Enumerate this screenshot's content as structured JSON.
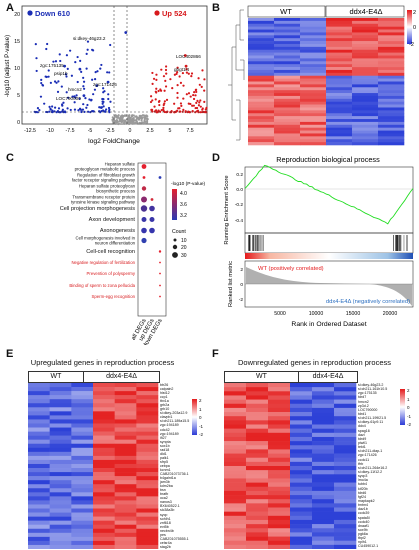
{
  "panels": {
    "A": "A",
    "B": "B",
    "C": "C",
    "D": "D",
    "E": "E",
    "F": "F"
  },
  "volcano": {
    "down_label": "Down 610",
    "up_label": "Up 524",
    "xlabel": "log2 FoldChange",
    "ylabel": "-log10 (adjust P-value)",
    "xticks": [
      "-12.5",
      "-10",
      "-7.5",
      "-5",
      "-2.5",
      "0",
      "2.5",
      "5",
      "7.5"
    ],
    "yticks": [
      "0",
      "5",
      "10",
      "15",
      "20"
    ],
    "genes": {
      "g1": "si:dkey-46g23.2",
      "g2": "zgc:175135",
      "g3": "psip1b",
      "g4": "zgc:171426",
      "g5": "hmcn2",
      "g6": "LOC790000",
      "g7": "LOC402866",
      "g8": "gbgt1l4"
    },
    "colors": {
      "down": "#1a2db5",
      "up": "#d7191c",
      "ns": "#9a9a9a"
    }
  },
  "heatmap_b": {
    "wt_label": "WT",
    "mut_label": "ddx4-E4Δ",
    "legend_ticks": [
      "2",
      "0",
      "-2"
    ]
  },
  "dotplot": {
    "terms": [
      "Heparan sulfate proteoglycan metabolic process",
      "Regulation of fibroblast growth factor receptor signaling pathway",
      "Heparan sulfate proteoglycan biosynthetic process",
      "Transmembrane receptor protein tyrosine kinase signaling pathway",
      "Cell projection morphogenesis",
      "Axon development",
      "Axonogenesis",
      "Cell morphogenesis involved in neuron differentiation",
      "Cell-cell recognition",
      "Negative regulation of fertilization",
      "Prevention of polyspermy",
      "Binding of sperm to zona pellucida",
      "Sperm-egg recognition"
    ],
    "groups": [
      "all DEGs",
      "up DEGs",
      "down DEGs"
    ],
    "legend_title": "-log10 (P-value)",
    "legend_ticks": [
      "4.0",
      "3.6",
      "3.2"
    ],
    "count_title": "Count",
    "count_ticks": [
      "10",
      "20",
      "30"
    ]
  },
  "gsea": {
    "title": "Reproduction biological process",
    "ylabel_top": "Running Enrichment Score",
    "yticks_top": [
      "0.2",
      "0.0",
      "-0.2",
      "-0.4"
    ],
    "ylabel_bottom": "Ranked list metric",
    "yticks_bottom": [
      "2",
      "0",
      "-2"
    ],
    "pos_label": "WT (positively correlated)",
    "neg_label": "ddx4-E4Δ (negatively correlated)",
    "xlabel": "Rank in Ordered Dataset",
    "xticks": [
      "5000",
      "10000",
      "15000",
      "20000"
    ]
  },
  "heat_e": {
    "title": "Upregulated genes in reproduction process",
    "wt_label": "WT",
    "mut_label": "ddx4-E4Δ",
    "legend_ticks": [
      "2",
      "1",
      "0",
      "-1",
      "-2"
    ],
    "genes": [
      "btr26",
      "calpain2",
      "hist12",
      "ccp1",
      "tbx1a",
      "grb2a",
      "grb10",
      "si:dkey-203a12.9",
      "clavpb1",
      "si:ch211-189a15.5",
      "zgc:194189",
      "cdc42",
      "zgc:194189",
      "ifi27",
      "synpta",
      "sox1b",
      "rad18",
      "dld1",
      "palk1",
      "sfrp5",
      "cebpa",
      "kcnm1",
      "CABZ01073736.1",
      "b4galnt1a",
      "jam3b",
      "kdm2ba",
      "bsn",
      "brafb",
      "oca2",
      "nanos3",
      "BX640522.1",
      "slc38a3b",
      "sycp",
      "sohlh1",
      "znf618",
      "evt5b",
      "necbn4b",
      "pes",
      "CABZ01075555.1",
      "celsr4a",
      "stag2b"
    ]
  },
  "heat_f": {
    "title": "Downregulated genes in reproduction process",
    "wt_label": "WT",
    "mut_label": "ddx4-E4Δ",
    "legend_ticks": [
      "2",
      "1",
      "0",
      "-1",
      "-2"
    ],
    "genes": [
      "si:dkey-46g23.2",
      "si:ch211-161h10.5",
      "zgc:175135",
      "tdrd7",
      "hmcn2",
      "zp3d.2",
      "LOC790000",
      "tdrd1",
      "si:ch211-199l21.5",
      "si:dkey-61p9.11",
      "ddx4",
      "spag16",
      "dazl",
      "tdrd9",
      "piwil1",
      "tekt1",
      "si:ch211-diap-1",
      "zgc:171426",
      "ccdc11",
      "tfrb",
      "si:ch211-264e16.2",
      "si:dkey-11f12.2",
      "sycp3",
      "lmo4a",
      "tubb4",
      "kif20b",
      "tdrd6",
      "fgf24",
      "mapkapk2",
      "tmtm4",
      "daz1b",
      "ccdc39",
      "spata5l",
      "ccdc40",
      "dnaaf1",
      "sox9b",
      "pgk6a",
      "tbpl2",
      "nplh1",
      "CU459012.1"
    ]
  }
}
